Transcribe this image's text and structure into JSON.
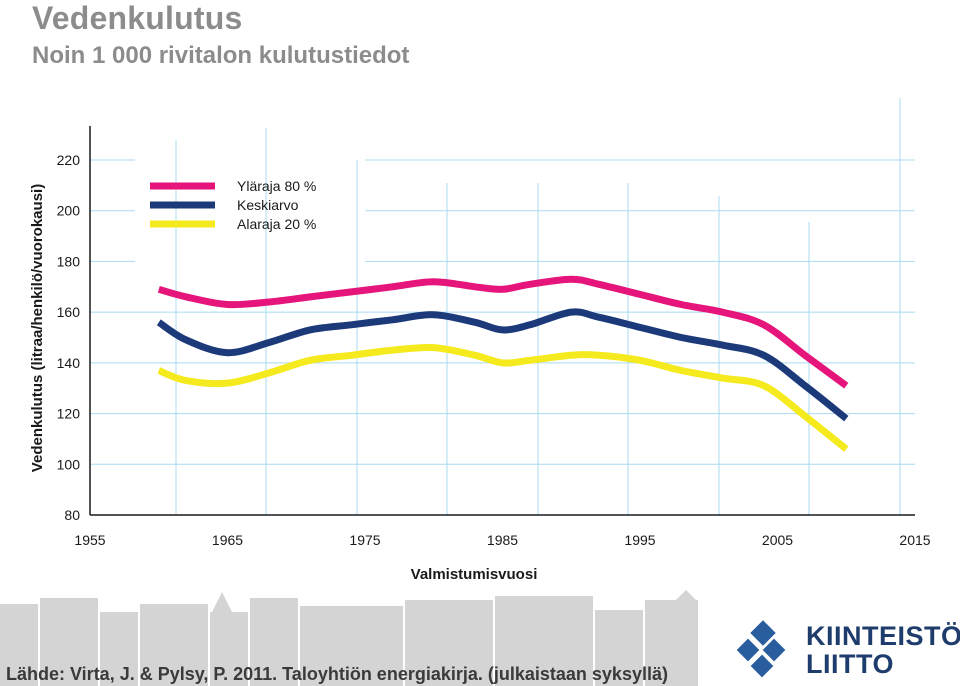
{
  "page": {
    "title": "Vedenkulutus",
    "subtitle": "Noin 1 000 rivitalon kulutustiedot",
    "source": "Lähde: Virta, J. & Pylsy, P. 2011. Taloyhtiön energiakirja. (julkaistaan syksyllä)",
    "brand_line1": "KIINTEISTÖ",
    "brand_line2": "LIITTO"
  },
  "colors": {
    "grid": "#a9dbf2",
    "axis": "#1a1a1a",
    "title_gray": "#8c8c8c",
    "brand_blue": "#1f3d6c",
    "logo_blue": "#2a5d9e",
    "skyline": "#d4d4d4"
  },
  "chart_data": {
    "type": "line",
    "title": "",
    "xlabel": "Valmistumisvuosi",
    "ylabel": "Vedenkulutus (litraa/henkilö/vuorokausi)",
    "xlim": [
      1955,
      2015
    ],
    "ylim": [
      80,
      220
    ],
    "xticks": [
      "1955",
      "1965",
      "1975",
      "1985",
      "1995",
      "2005",
      "2015"
    ],
    "yticks": [
      "220",
      "200",
      "180",
      "160",
      "140",
      "120",
      "100",
      "80"
    ],
    "legend_position": "top-left",
    "series": [
      {
        "name": "Yläraja 80 %",
        "color": "#e5157c",
        "x": [
          1960,
          1962,
          1965,
          1968,
          1971,
          1974,
          1977,
          1980,
          1983,
          1985,
          1987,
          1990,
          1992,
          1995,
          1998,
          2001,
          2004,
          2007,
          2010
        ],
        "y": [
          169,
          166,
          163,
          164,
          166,
          168,
          170,
          172,
          170,
          169,
          171,
          173,
          171,
          167,
          163,
          160,
          155,
          143,
          131
        ]
      },
      {
        "name": "Keskiarvo",
        "color": "#1c3a7a",
        "x": [
          1960,
          1962,
          1965,
          1968,
          1971,
          1974,
          1977,
          1980,
          1983,
          1985,
          1987,
          1990,
          1992,
          1995,
          1998,
          2001,
          2004,
          2007,
          2010
        ],
        "y": [
          156,
          149,
          144,
          148,
          153,
          155,
          157,
          159,
          156,
          153,
          155,
          160,
          158,
          154,
          150,
          147,
          143,
          131,
          118
        ]
      },
      {
        "name": "Alaraja 20 %",
        "color": "#f4ea1e",
        "x": [
          1960,
          1962,
          1965,
          1968,
          1971,
          1974,
          1977,
          1980,
          1983,
          1985,
          1987,
          1990,
          1992,
          1995,
          1998,
          2001,
          2004,
          2007,
          2010
        ],
        "y": [
          137,
          133,
          132,
          136,
          141,
          143,
          145,
          146,
          143,
          140,
          141,
          143,
          143,
          141,
          137,
          134,
          131,
          119,
          106
        ]
      }
    ]
  }
}
